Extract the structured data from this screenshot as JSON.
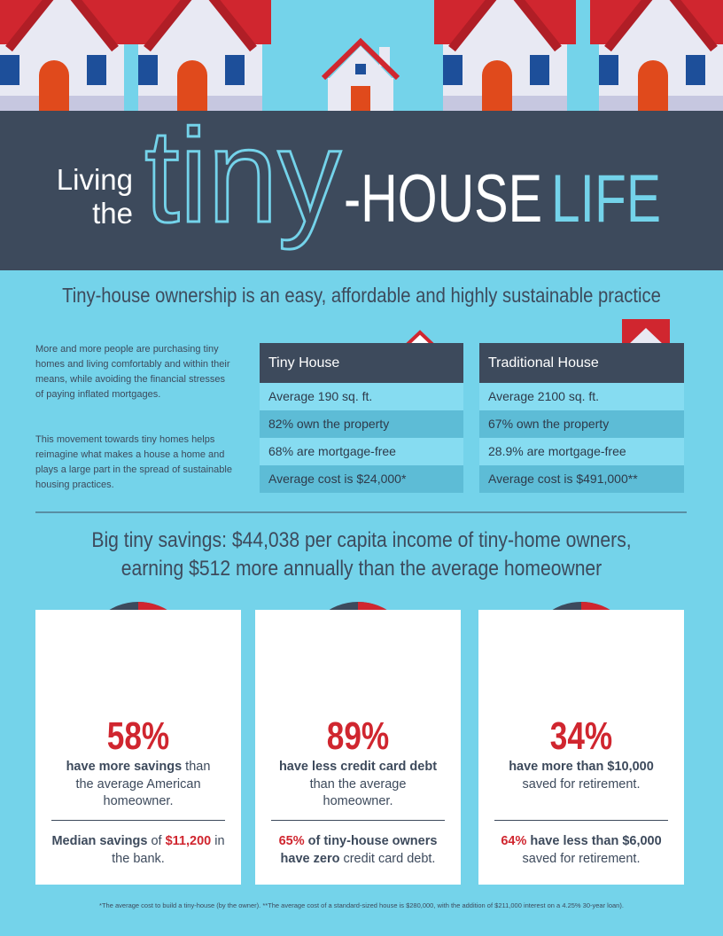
{
  "header": {
    "living": "Living",
    "the": "the",
    "tiny": "tiny",
    "house": "-HOUSE",
    "life": "LIFE"
  },
  "subtitle": "Tiny-house ownership is an easy, affordable and highly sustainable practice",
  "intro": [
    "More and more people are purchasing tiny homes and living comfortably and within their means, while avoiding the financial stresses of paying inflated mortgages.",
    "This movement towards tiny homes helps reimagine what makes a house a home and plays a large part in the spread of sustainable housing practices."
  ],
  "tables": [
    {
      "title": "Tiny House",
      "rows": [
        "Average 190 sq. ft.",
        "82% own the property",
        "68% are mortgage-free",
        "Average cost is $24,000*"
      ]
    },
    {
      "title": "Traditional House",
      "rows": [
        "Average 2100 sq. ft.",
        "67% own the property",
        "28.9% are mortgage-free",
        "Average cost is $491,000**"
      ]
    }
  ],
  "savings_heading": [
    "Big tiny savings: $44,038 per capita income of tiny-home owners,",
    "earning $512 more annually than the average homeowner"
  ],
  "stats": [
    {
      "value": 58,
      "value_label": "58%",
      "description": [
        {
          "text": "have more savings",
          "bold": true
        },
        {
          "text": " than the average American homeowner.",
          "bold": false
        }
      ],
      "note": [
        {
          "text": "Median savings",
          "bold": true
        },
        {
          "text": " of ",
          "bold": false
        },
        {
          "text": "$11,200",
          "bold": true,
          "red": true
        },
        {
          "text": " in the bank.",
          "bold": false
        }
      ]
    },
    {
      "value": 89,
      "value_label": "89%",
      "description": [
        {
          "text": "have less credit card debt",
          "bold": true
        },
        {
          "text": " than the average homeowner.",
          "bold": false
        }
      ],
      "note": [
        {
          "text": "65%",
          "bold": true,
          "red": true
        },
        {
          "text": " of tiny-house owners have zero",
          "bold": true
        },
        {
          "text": " credit card debt.",
          "bold": false
        }
      ]
    },
    {
      "value": 34,
      "value_label": "34%",
      "description": [
        {
          "text": "have more than $10,000",
          "bold": true
        },
        {
          "text": " saved for retirement.",
          "bold": false
        }
      ],
      "note": [
        {
          "text": "64%",
          "bold": true,
          "red": true
        },
        {
          "text": " have less than $6,000",
          "bold": true
        },
        {
          "text": " saved for retirement.",
          "bold": false
        }
      ]
    }
  ],
  "footnote": "*The average cost to build a tiny-house (by the owner). **The average cost of a standard-sized house is $280,000, with the addition of $211,000 interest on a 4.25% 30-year loan)."
}
